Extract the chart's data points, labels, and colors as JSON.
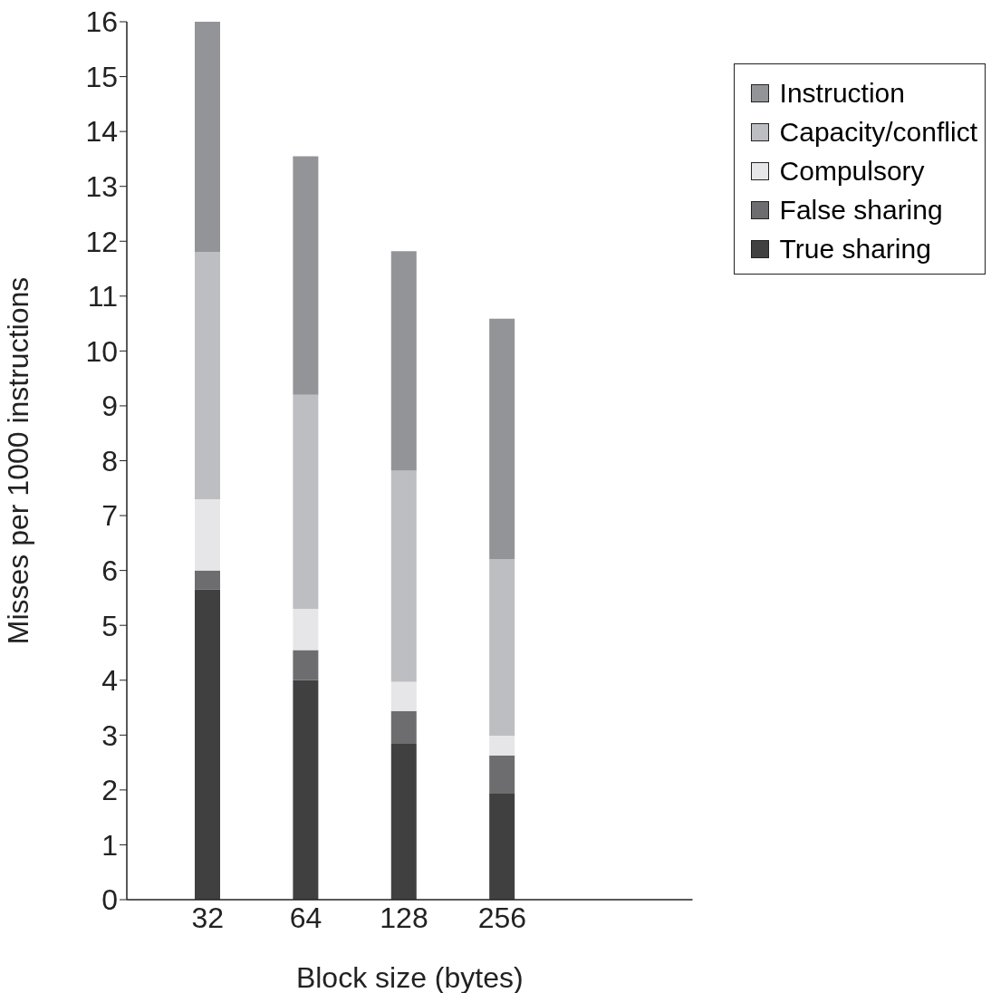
{
  "chart_data": {
    "type": "bar",
    "stacked": true,
    "xlabel": "Block size (bytes)",
    "ylabel": "Misses per 1000 instructions",
    "categories": [
      "32",
      "64",
      "128",
      "256"
    ],
    "series": [
      {
        "name": "True sharing",
        "color": "#404040",
        "values": [
          5.65,
          4.0,
          2.84,
          1.93
        ]
      },
      {
        "name": "False sharing",
        "color": "#6d6d6f",
        "values": [
          0.35,
          0.55,
          0.6,
          0.7
        ]
      },
      {
        "name": "Compulsory",
        "color": "#e6e6e8",
        "values": [
          1.3,
          0.75,
          0.53,
          0.36
        ]
      },
      {
        "name": "Capacity/conflict",
        "color": "#bdbec2",
        "values": [
          4.5,
          3.9,
          3.85,
          3.22
        ]
      },
      {
        "name": "Instruction",
        "color": "#939497",
        "values": [
          4.2,
          4.35,
          4.0,
          4.38
        ]
      }
    ],
    "ylim": [
      0,
      16
    ],
    "yticks": [
      0,
      1,
      2,
      3,
      4,
      5,
      6,
      7,
      8,
      9,
      10,
      11,
      12,
      13,
      14,
      15,
      16
    ],
    "grid": false,
    "legend": "top right"
  }
}
